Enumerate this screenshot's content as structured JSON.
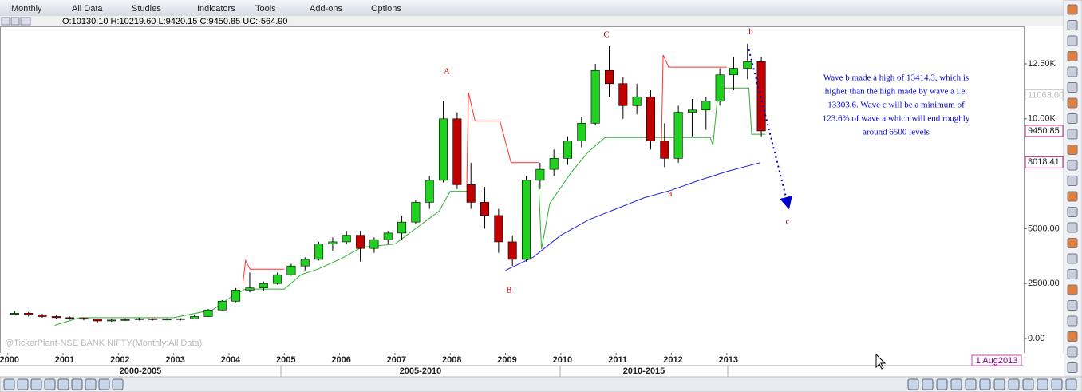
{
  "menu": [
    "Monthly",
    "All Data",
    "Studies",
    "Indicators",
    "Tools",
    "Add-ons",
    "Options"
  ],
  "chart_data": {
    "type": "candlestick",
    "ohlc_header": "O:10130.10  H:10219.60  L:9420.15  C:9450.85  UC:-564.90",
    "watermark": "@TickerPlant-NSE BANK NIFTY(Monthly:All Data)",
    "up_color": "#22d022",
    "down_color": "#c00000",
    "x": [
      2000.125,
      2000.375,
      2000.625,
      2000.875,
      2001.125,
      2001.375,
      2001.625,
      2001.875,
      2002.125,
      2002.375,
      2002.625,
      2002.875,
      2003.125,
      2003.375,
      2003.625,
      2003.875,
      2004.125,
      2004.375,
      2004.625,
      2004.875,
      2005.125,
      2005.375,
      2005.625,
      2005.875,
      2006.125,
      2006.375,
      2006.625,
      2006.875,
      2007.125,
      2007.375,
      2007.625,
      2007.875,
      2008.125,
      2008.375,
      2008.625,
      2008.875,
      2009.125,
      2009.375,
      2009.625,
      2009.875,
      2010.125,
      2010.375,
      2010.625,
      2010.875,
      2011.125,
      2011.375,
      2011.625,
      2011.875,
      2012.125,
      2012.375,
      2012.625,
      2012.875,
      2013.125,
      2013.375,
      2013.625
    ],
    "open": [
      1100,
      1150,
      1080,
      1000,
      950,
      920,
      880,
      800,
      840,
      860,
      900,
      860,
      880,
      900,
      1000,
      1300,
      1700,
      2200,
      2300,
      2500,
      2900,
      3300,
      3600,
      4300,
      4400,
      4700,
      4100,
      4500,
      4800,
      5300,
      6200,
      7200,
      10000,
      7000,
      6200,
      5600,
      4400,
      3600,
      7200,
      7700,
      8200,
      9000,
      9800,
      12200,
      11600,
      10600,
      11000,
      9000,
      8200,
      10300,
      10400,
      10800,
      12000,
      12300,
      12600
    ],
    "high": [
      1250,
      1200,
      1120,
      1050,
      1000,
      960,
      900,
      880,
      920,
      950,
      920,
      920,
      930,
      1050,
      1350,
      1750,
      2300,
      3000,
      2600,
      3000,
      3400,
      3700,
      4400,
      4600,
      4900,
      4900,
      4600,
      4900,
      5600,
      6300,
      7400,
      10800,
      10300,
      8000,
      6900,
      5900,
      4700,
      7400,
      8000,
      8600,
      9200,
      10100,
      12500,
      13300,
      11900,
      11600,
      11300,
      9800,
      10600,
      10900,
      11000,
      12300,
      12800,
      13414,
      12800
    ],
    "low": [
      1050,
      1000,
      950,
      900,
      850,
      830,
      740,
      760,
      800,
      820,
      820,
      830,
      820,
      880,
      980,
      1280,
      1650,
      2100,
      2150,
      2450,
      2850,
      3100,
      3550,
      4000,
      4300,
      3500,
      3900,
      4300,
      4500,
      5200,
      5900,
      7100,
      6800,
      5900,
      5000,
      3900,
      3300,
      3500,
      6800,
      7400,
      7900,
      8700,
      9700,
      11000,
      10000,
      10200,
      8600,
      7800,
      8000,
      9200,
      9500,
      10600,
      11300,
      11800,
      9200
    ],
    "close": [
      1150,
      1080,
      1000,
      950,
      920,
      880,
      800,
      840,
      860,
      900,
      860,
      880,
      900,
      1000,
      1300,
      1700,
      2200,
      2300,
      2500,
      2900,
      3300,
      3600,
      4300,
      4400,
      4700,
      4100,
      4500,
      4800,
      5300,
      6200,
      7200,
      10000,
      7000,
      6200,
      5600,
      4400,
      3600,
      7200,
      7700,
      8200,
      9000,
      9800,
      12200,
      11600,
      10600,
      11000,
      9000,
      8200,
      10300,
      10400,
      10800,
      12000,
      12300,
      12600,
      9450
    ],
    "overlays": [
      {
        "color": "#ff3030",
        "x": [
          2004.25,
          2004.3,
          2004.38,
          2005.0,
          2005.05,
          2008.3,
          2008.33,
          2008.45,
          2008.9,
          2009.1,
          2009.6,
          2009.65,
          2011.82,
          2011.85,
          2011.95,
          2013.0
        ],
        "values": [
          2500,
          3550,
          3150,
          3150,
          null,
          7000,
          11200,
          9900,
          9900,
          8000,
          8000,
          null,
          9000,
          12900,
          12350,
          12350
        ]
      },
      {
        "color": "#30b030",
        "x": [
          2000.85,
          2001.3,
          2003.0,
          2003.7,
          2004.1,
          2004.3,
          2005.0,
          2005.3,
          2005.6,
          2006.0,
          2006.4,
          2007.0,
          2007.4,
          2007.8,
          2008.0,
          2008.35,
          2008.4,
          2009.6,
          2009.65,
          2009.8,
          2010.2,
          2010.5,
          2010.8,
          2012.7,
          2012.75,
          2012.85,
          2013.4,
          2013.45,
          2013.7
        ],
        "values": [
          600,
          950,
          950,
          1300,
          2000,
          2250,
          2250,
          2900,
          3150,
          3600,
          4150,
          4300,
          5050,
          5800,
          6700,
          6700,
          null,
          7000,
          4070,
          6150,
          7600,
          8500,
          9150,
          9150,
          8800,
          11400,
          11400,
          9300,
          9300
        ]
      },
      {
        "color": "#2020e0",
        "x": [
          2009.0,
          2009.5,
          2010.0,
          2010.5,
          2011.0,
          2011.5,
          2012.0,
          2012.5,
          2013.0,
          2013.6
        ],
        "values": [
          3100,
          3700,
          4700,
          5400,
          5900,
          6400,
          6750,
          7200,
          7600,
          8000
        ]
      }
    ],
    "projection": {
      "color": "#0000cc",
      "x": [
        2013.4,
        2014.1
      ],
      "values": [
        13150,
        6150
      ]
    },
    "xlim": [
      1999.86,
      2018.37
    ],
    "ylim": [
      -654,
      14208
    ],
    "xticks": [
      2000,
      2001,
      2002,
      2003,
      2004,
      2005,
      2006,
      2007,
      2008,
      2009,
      2010,
      2011,
      2012,
      2013
    ],
    "yticks": [
      {
        "value": 12500,
        "label": "12.50K"
      },
      {
        "value": 10000,
        "label": "10.00K"
      },
      {
        "value": 5000,
        "label": "5000.00"
      },
      {
        "value": 2500,
        "label": "2500.00"
      },
      {
        "value": 0,
        "label": "0.00"
      }
    ],
    "periods": [
      "2000-2005",
      "2005-2010",
      "2010-2015"
    ],
    "price_labels": [
      {
        "value": 11063,
        "label": "11063.00"
      },
      9450.85,
      8018.41
    ],
    "date_label": "1 Aug2013",
    "wave_labels": [
      "A",
      "B",
      "C",
      "a",
      "b",
      "c"
    ],
    "note": [
      "Wave b made a high of 13414.3, which is",
      "higher than the high made by wave a i.e.",
      "13303.6. Wave c will be a minimum of",
      "123.6% of wave a which will end roughly",
      "around 6500 levels"
    ]
  }
}
